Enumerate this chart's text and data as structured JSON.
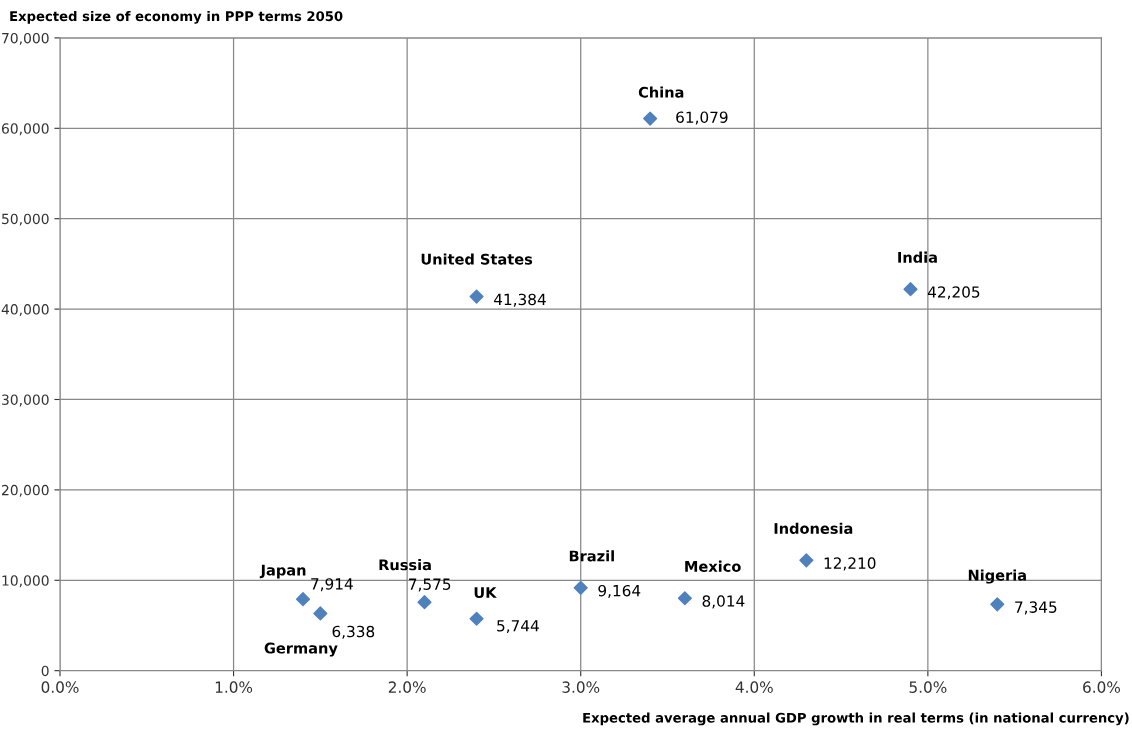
{
  "chart_data": {
    "type": "scatter",
    "ylabel": "Expected size of economy in PPP terms 2050",
    "xlabel": "Expected average annual GDP growth in real terms (in national currency)",
    "series": [
      {
        "color": "#4f81bd",
        "x": [
          1.4,
          1.5,
          2.1,
          2.4,
          2.4,
          3.0,
          3.4,
          3.6,
          4.3,
          4.9,
          5.4
        ],
        "values": [
          7914,
          6338,
          7575,
          5744,
          41384,
          9164,
          61079,
          8014,
          12210,
          42205,
          7345
        ],
        "value_labels": [
          "7,914",
          "6,338",
          "7,575",
          "5,744",
          "41,384",
          "9,164",
          "61,079",
          "8,014",
          "12,210",
          "42,205",
          "7,345"
        ]
      }
    ],
    "annotations": [
      {
        "text": "Japan",
        "x": 1.4,
        "y": 7914
      },
      {
        "text": "Germany",
        "x": 1.5,
        "y": 6338
      },
      {
        "text": "Russia",
        "x": 2.1,
        "y": 7575
      },
      {
        "text": "UK",
        "x": 2.4,
        "y": 5744
      },
      {
        "text": "United States",
        "x": 2.4,
        "y": 41384
      },
      {
        "text": "Brazil",
        "x": 3.0,
        "y": 9164
      },
      {
        "text": "China",
        "x": 3.4,
        "y": 61079
      },
      {
        "text": "Mexico",
        "x": 3.6,
        "y": 8014
      },
      {
        "text": "Indonesia",
        "x": 4.3,
        "y": 12210
      },
      {
        "text": "India",
        "x": 4.9,
        "y": 42205
      },
      {
        "text": "Nigeria",
        "x": 5.4,
        "y": 7345
      }
    ],
    "xlim": [
      0,
      6
    ],
    "xticks": [
      {
        "value": 0,
        "label": "0.0%"
      },
      {
        "value": 1,
        "label": "1.0%"
      },
      {
        "value": 2,
        "label": "2.0%"
      },
      {
        "value": 3,
        "label": "3.0%"
      },
      {
        "value": 4,
        "label": "4.0%"
      },
      {
        "value": 5,
        "label": "5.0%"
      },
      {
        "value": 6,
        "label": "6.0%"
      }
    ],
    "ylim": [
      0,
      70000
    ],
    "yticks": [
      0,
      {
        "value": 10000,
        "label": "10,000"
      },
      {
        "value": 20000,
        "label": "20,000"
      },
      {
        "value": 30000,
        "label": "30,000"
      },
      {
        "value": 40000,
        "label": "40,000"
      },
      {
        "value": 50000,
        "label": "50,000"
      },
      {
        "value": 60000,
        "label": "60,000"
      },
      {
        "value": 70000,
        "label": "70,000"
      }
    ],
    "grid": true,
    "marker": "diamond",
    "legend": false
  }
}
